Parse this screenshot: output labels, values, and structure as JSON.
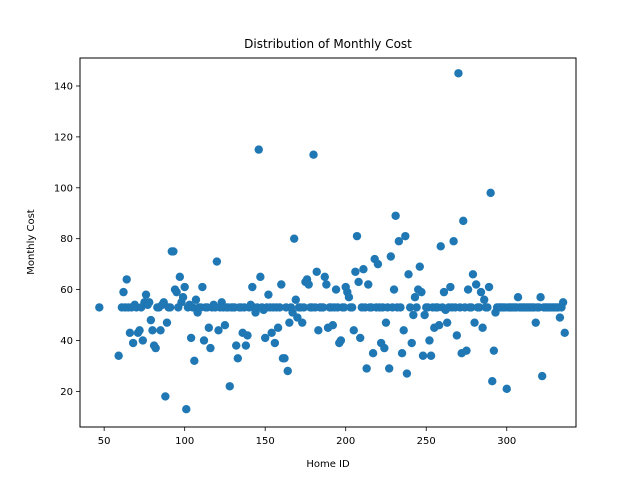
{
  "chart_data": {
    "type": "scatter",
    "title": "Distribution of Monthly Cost",
    "xlabel": "Home ID",
    "ylabel": "Monthly Cost",
    "xlim": [
      35,
      343
    ],
    "ylim": [
      6,
      151
    ],
    "xticks": [
      50,
      100,
      150,
      200,
      250,
      300
    ],
    "yticks": [
      20,
      40,
      60,
      80,
      100,
      120,
      140
    ],
    "grid": false,
    "marker_color": "#1f77b4",
    "points": [
      [
        47,
        53
      ],
      [
        59,
        34
      ],
      [
        61,
        53
      ],
      [
        62,
        59
      ],
      [
        63,
        53
      ],
      [
        64,
        64
      ],
      [
        65,
        53
      ],
      [
        66,
        43
      ],
      [
        67,
        53
      ],
      [
        68,
        39
      ],
      [
        69,
        54
      ],
      [
        70,
        53
      ],
      [
        71,
        43
      ],
      [
        72,
        44
      ],
      [
        73,
        53
      ],
      [
        74,
        40
      ],
      [
        75,
        55
      ],
      [
        76,
        58
      ],
      [
        77,
        54
      ],
      [
        78,
        55
      ],
      [
        79,
        48
      ],
      [
        80,
        44
      ],
      [
        81,
        38
      ],
      [
        82,
        37
      ],
      [
        83,
        53
      ],
      [
        84,
        53
      ],
      [
        85,
        44
      ],
      [
        86,
        54
      ],
      [
        87,
        55
      ],
      [
        88,
        18
      ],
      [
        89,
        47
      ],
      [
        90,
        53
      ],
      [
        91,
        53
      ],
      [
        92,
        75
      ],
      [
        93,
        75
      ],
      [
        94,
        60
      ],
      [
        95,
        59
      ],
      [
        96,
        53
      ],
      [
        97,
        65
      ],
      [
        98,
        55
      ],
      [
        99,
        57
      ],
      [
        100,
        61
      ],
      [
        101,
        13
      ],
      [
        102,
        53
      ],
      [
        103,
        54
      ],
      [
        104,
        41
      ],
      [
        105,
        53
      ],
      [
        106,
        32
      ],
      [
        107,
        56
      ],
      [
        108,
        51
      ],
      [
        109,
        53
      ],
      [
        110,
        53
      ],
      [
        111,
        61
      ],
      [
        112,
        40
      ],
      [
        113,
        53
      ],
      [
        114,
        53
      ],
      [
        115,
        45
      ],
      [
        116,
        37
      ],
      [
        117,
        53
      ],
      [
        118,
        54
      ],
      [
        119,
        53
      ],
      [
        120,
        71
      ],
      [
        121,
        44
      ],
      [
        122,
        53
      ],
      [
        123,
        55
      ],
      [
        124,
        53
      ],
      [
        125,
        46
      ],
      [
        126,
        53
      ],
      [
        127,
        53
      ],
      [
        128,
        22
      ],
      [
        129,
        53
      ],
      [
        130,
        53
      ],
      [
        131,
        53
      ],
      [
        132,
        38
      ],
      [
        133,
        33
      ],
      [
        134,
        53
      ],
      [
        135,
        53
      ],
      [
        136,
        43
      ],
      [
        137,
        53
      ],
      [
        138,
        38
      ],
      [
        139,
        42
      ],
      [
        140,
        53
      ],
      [
        141,
        54
      ],
      [
        142,
        61
      ],
      [
        143,
        53
      ],
      [
        144,
        51
      ],
      [
        145,
        53
      ],
      [
        146,
        115
      ],
      [
        147,
        65
      ],
      [
        148,
        53
      ],
      [
        149,
        52
      ],
      [
        150,
        41
      ],
      [
        151,
        53
      ],
      [
        152,
        58
      ],
      [
        153,
        53
      ],
      [
        154,
        43
      ],
      [
        155,
        53
      ],
      [
        156,
        39
      ],
      [
        157,
        53
      ],
      [
        158,
        45
      ],
      [
        159,
        53
      ],
      [
        160,
        62
      ],
      [
        161,
        33
      ],
      [
        162,
        33
      ],
      [
        163,
        53
      ],
      [
        164,
        28
      ],
      [
        165,
        47
      ],
      [
        166,
        53
      ],
      [
        167,
        51
      ],
      [
        168,
        80
      ],
      [
        169,
        56
      ],
      [
        170,
        49
      ],
      [
        171,
        53
      ],
      [
        172,
        53
      ],
      [
        173,
        47
      ],
      [
        174,
        53
      ],
      [
        175,
        63
      ],
      [
        176,
        64
      ],
      [
        177,
        62
      ],
      [
        178,
        53
      ],
      [
        179,
        53
      ],
      [
        180,
        113
      ],
      [
        181,
        53
      ],
      [
        182,
        67
      ],
      [
        183,
        44
      ],
      [
        184,
        53
      ],
      [
        185,
        53
      ],
      [
        186,
        53
      ],
      [
        187,
        65
      ],
      [
        188,
        62
      ],
      [
        189,
        45
      ],
      [
        190,
        53
      ],
      [
        191,
        53
      ],
      [
        192,
        46
      ],
      [
        193,
        53
      ],
      [
        194,
        60
      ],
      [
        195,
        53
      ],
      [
        196,
        39
      ],
      [
        197,
        40
      ],
      [
        198,
        53
      ],
      [
        199,
        53
      ],
      [
        200,
        61
      ],
      [
        201,
        59
      ],
      [
        202,
        57
      ],
      [
        203,
        53
      ],
      [
        204,
        53
      ],
      [
        205,
        44
      ],
      [
        206,
        67
      ],
      [
        207,
        81
      ],
      [
        208,
        63
      ],
      [
        209,
        41
      ],
      [
        210,
        53
      ],
      [
        211,
        68
      ],
      [
        212,
        53
      ],
      [
        213,
        29
      ],
      [
        214,
        62
      ],
      [
        215,
        53
      ],
      [
        216,
        53
      ],
      [
        217,
        35
      ],
      [
        218,
        72
      ],
      [
        219,
        53
      ],
      [
        220,
        70
      ],
      [
        221,
        53
      ],
      [
        222,
        39
      ],
      [
        223,
        53
      ],
      [
        224,
        37
      ],
      [
        225,
        47
      ],
      [
        226,
        53
      ],
      [
        227,
        29
      ],
      [
        228,
        73
      ],
      [
        229,
        53
      ],
      [
        230,
        60
      ],
      [
        231,
        89
      ],
      [
        232,
        53
      ],
      [
        233,
        79
      ],
      [
        234,
        53
      ],
      [
        235,
        35
      ],
      [
        236,
        44
      ],
      [
        237,
        81
      ],
      [
        238,
        27
      ],
      [
        239,
        66
      ],
      [
        240,
        53
      ],
      [
        241,
        39
      ],
      [
        242,
        50
      ],
      [
        243,
        57
      ],
      [
        244,
        53
      ],
      [
        245,
        60
      ],
      [
        246,
        69
      ],
      [
        247,
        59
      ],
      [
        248,
        34
      ],
      [
        249,
        50
      ],
      [
        250,
        53
      ],
      [
        251,
        53
      ],
      [
        252,
        40
      ],
      [
        253,
        34
      ],
      [
        254,
        53
      ],
      [
        255,
        45
      ],
      [
        256,
        53
      ],
      [
        257,
        53
      ],
      [
        258,
        46
      ],
      [
        259,
        77
      ],
      [
        260,
        53
      ],
      [
        261,
        59
      ],
      [
        262,
        52
      ],
      [
        263,
        47
      ],
      [
        264,
        53
      ],
      [
        265,
        61
      ],
      [
        266,
        53
      ],
      [
        267,
        79
      ],
      [
        268,
        53
      ],
      [
        269,
        42
      ],
      [
        270,
        145
      ],
      [
        271,
        53
      ],
      [
        272,
        35
      ],
      [
        273,
        87
      ],
      [
        274,
        53
      ],
      [
        275,
        36
      ],
      [
        276,
        60
      ],
      [
        277,
        53
      ],
      [
        278,
        53
      ],
      [
        279,
        66
      ],
      [
        280,
        47
      ],
      [
        281,
        62
      ],
      [
        282,
        53
      ],
      [
        283,
        53
      ],
      [
        284,
        59
      ],
      [
        285,
        45
      ],
      [
        286,
        56
      ],
      [
        287,
        53
      ],
      [
        288,
        53
      ],
      [
        289,
        61
      ],
      [
        290,
        98
      ],
      [
        291,
        24
      ],
      [
        292,
        36
      ],
      [
        293,
        51
      ],
      [
        294,
        53
      ],
      [
        295,
        53
      ],
      [
        296,
        53
      ],
      [
        297,
        53
      ],
      [
        298,
        53
      ],
      [
        299,
        53
      ],
      [
        300,
        21
      ],
      [
        301,
        53
      ],
      [
        302,
        53
      ],
      [
        303,
        53
      ],
      [
        304,
        53
      ],
      [
        305,
        53
      ],
      [
        306,
        53
      ],
      [
        307,
        57
      ],
      [
        308,
        53
      ],
      [
        309,
        53
      ],
      [
        310,
        53
      ],
      [
        311,
        53
      ],
      [
        312,
        53
      ],
      [
        313,
        53
      ],
      [
        314,
        53
      ],
      [
        315,
        53
      ],
      [
        316,
        53
      ],
      [
        317,
        53
      ],
      [
        318,
        47
      ],
      [
        319,
        53
      ],
      [
        320,
        53
      ],
      [
        321,
        57
      ],
      [
        322,
        26
      ],
      [
        323,
        53
      ],
      [
        324,
        53
      ],
      [
        325,
        53
      ],
      [
        326,
        53
      ],
      [
        327,
        53
      ],
      [
        328,
        53
      ],
      [
        329,
        53
      ],
      [
        330,
        53
      ],
      [
        331,
        53
      ],
      [
        332,
        53
      ],
      [
        333,
        49
      ],
      [
        334,
        53
      ],
      [
        335,
        55
      ],
      [
        336,
        43
      ]
    ]
  }
}
